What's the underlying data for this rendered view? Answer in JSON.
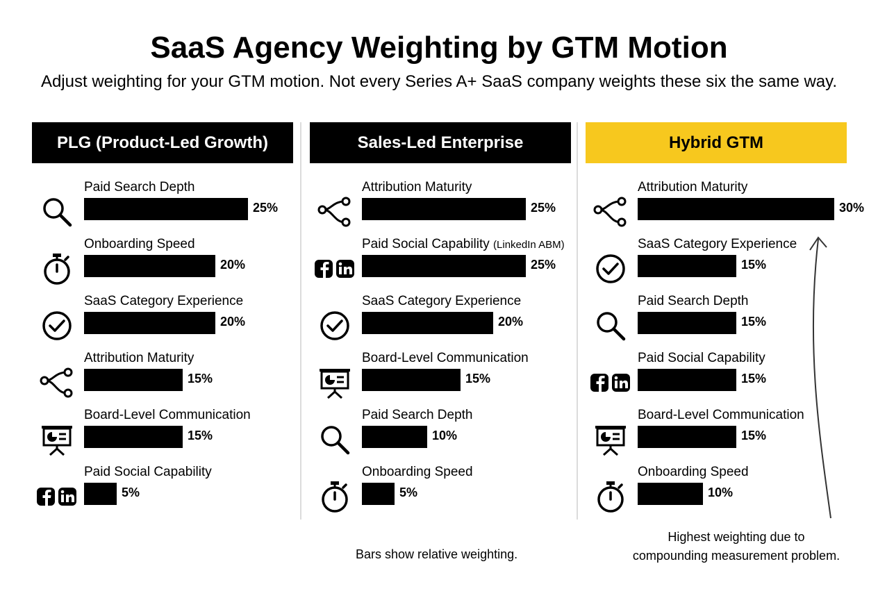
{
  "title": "SaaS Agency Weighting by GTM Motion",
  "subtitle": "Adjust weighting for your GTM motion. Not every Series A+ SaaS company weights these six the same way.",
  "footnote": "Bars show relative weighting.",
  "annotation": {
    "line1": "Highest weighting due to",
    "line2": "compounding measurement problem."
  },
  "colors": {
    "accent": "#f7c81e",
    "bar": "#000000",
    "header": "#000000"
  },
  "chart_data": [
    {
      "type": "bar",
      "title": "PLG (Product-Led Growth)",
      "categories": [
        "Paid Search Depth",
        "Onboarding Speed",
        "SaaS Category Experience",
        "Attribution Maturity",
        "Board-Level Communication",
        "Paid Social Capability"
      ],
      "notes": [
        "",
        "",
        "",
        "",
        "",
        ""
      ],
      "icons": [
        "search-icon",
        "stopwatch-icon",
        "check-circle-icon",
        "attribution-icon",
        "presentation-icon",
        "social-icons"
      ],
      "values": [
        25,
        20,
        20,
        15,
        15,
        5
      ],
      "labels": [
        "25%",
        "20%",
        "20%",
        "15%",
        "15%",
        "5%"
      ],
      "highlight": false
    },
    {
      "type": "bar",
      "title": "Sales-Led Enterprise",
      "categories": [
        "Attribution Maturity",
        "Paid Social Capability",
        "SaaS Category Experience",
        "Board-Level Communication",
        "Paid Search Depth",
        "Onboarding Speed"
      ],
      "notes": [
        "",
        "(LinkedIn ABM)",
        "",
        "",
        "",
        ""
      ],
      "icons": [
        "attribution-icon",
        "social-icons",
        "check-circle-icon",
        "presentation-icon",
        "search-icon",
        "stopwatch-icon"
      ],
      "values": [
        25,
        25,
        20,
        15,
        10,
        5
      ],
      "labels": [
        "25%",
        "25%",
        "20%",
        "15%",
        "10%",
        "5%"
      ],
      "highlight": false
    },
    {
      "type": "bar",
      "title": "Hybrid GTM",
      "categories": [
        "Attribution Maturity",
        "SaaS Category Experience",
        "Paid Search Depth",
        "Paid Social Capability",
        "Board-Level Communication",
        "Onboarding Speed"
      ],
      "notes": [
        "",
        "",
        "",
        "",
        "",
        ""
      ],
      "icons": [
        "attribution-icon",
        "check-circle-icon",
        "search-icon",
        "social-icons",
        "presentation-icon",
        "stopwatch-icon"
      ],
      "values": [
        30,
        15,
        15,
        15,
        15,
        10
      ],
      "labels": [
        "30%",
        "15%",
        "15%",
        "15%",
        "15%",
        "10%"
      ],
      "highlight": true
    }
  ]
}
